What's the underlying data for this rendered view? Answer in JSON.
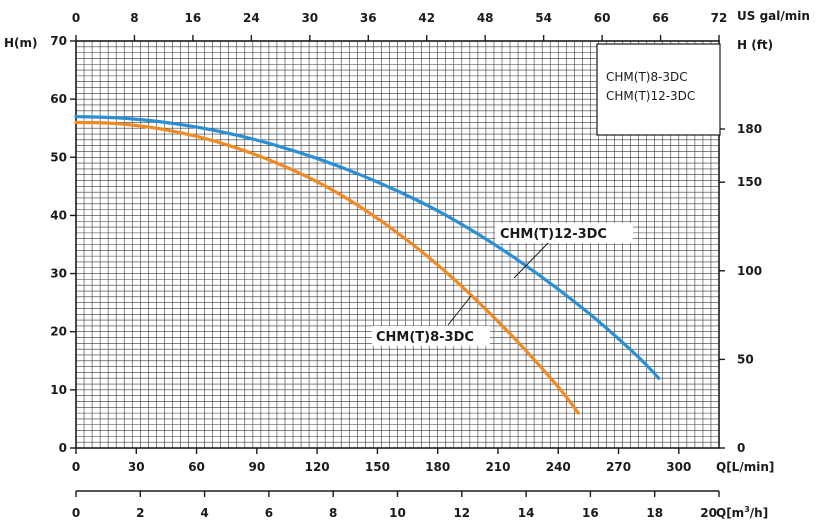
{
  "chart_data": {
    "type": "line",
    "title": "",
    "axes": {
      "left": {
        "label": "H(m)",
        "ticks": [
          "0",
          "10",
          "20",
          "30",
          "40",
          "50",
          "60",
          "70"
        ],
        "range": [
          0,
          70
        ]
      },
      "right": {
        "label": "H (ft)",
        "ticks": [
          "0",
          "50",
          "100",
          "150",
          "180"
        ],
        "tick_values": [
          0,
          50,
          100,
          150,
          180
        ],
        "range": [
          0,
          229.66
        ]
      },
      "top": {
        "label": "US gal/min",
        "ticks": [
          "0",
          "8",
          "16",
          "24",
          "30",
          "36",
          "42",
          "48",
          "54",
          "60",
          "66",
          "72"
        ],
        "range": [
          0,
          84.5
        ]
      },
      "bottom": {
        "label": "Q[L/min]",
        "ticks": [
          "0",
          "30",
          "60",
          "90",
          "120",
          "150",
          "180",
          "210",
          "240",
          "270",
          "300"
        ],
        "range": [
          0,
          320
        ]
      },
      "bottom2": {
        "label": "Q[m³/h]",
        "ticks": [
          "0",
          "2",
          "4",
          "6",
          "8",
          "10",
          "12",
          "14",
          "16",
          "18",
          "20"
        ],
        "range": [
          0,
          20
        ]
      }
    },
    "grid": true,
    "legend": {
      "position": "top-right",
      "entries": [
        "CHM(T)8-3DC",
        "CHM(T)12-3DC"
      ]
    },
    "series": [
      {
        "name": "CHM(T)8-3DC",
        "color": "#f08a24",
        "x": [
          0,
          20,
          40,
          60,
          80,
          100,
          120,
          140,
          160,
          180,
          200,
          220,
          240,
          250
        ],
        "y": [
          56,
          55.8,
          55,
          53.6,
          51.6,
          49,
          45.8,
          41.8,
          37,
          31.5,
          25.2,
          18.2,
          10.5,
          6
        ]
      },
      {
        "name": "CHM(T)12-3DC",
        "color": "#2a8fd4",
        "x": [
          0,
          20,
          40,
          60,
          80,
          100,
          120,
          140,
          160,
          180,
          200,
          220,
          240,
          260,
          280,
          290
        ],
        "y": [
          57,
          56.8,
          56.2,
          55.2,
          53.8,
          52,
          49.8,
          47.2,
          44.2,
          40.8,
          36.8,
          32.3,
          27.3,
          21.8,
          15.6,
          12
        ]
      }
    ],
    "annotations": [
      {
        "text": "CHM(T)12-3DC",
        "points_to": "CHM(T)12-3DC"
      },
      {
        "text": "CHM(T)8-3DC",
        "points_to": "CHM(T)8-3DC"
      }
    ]
  }
}
